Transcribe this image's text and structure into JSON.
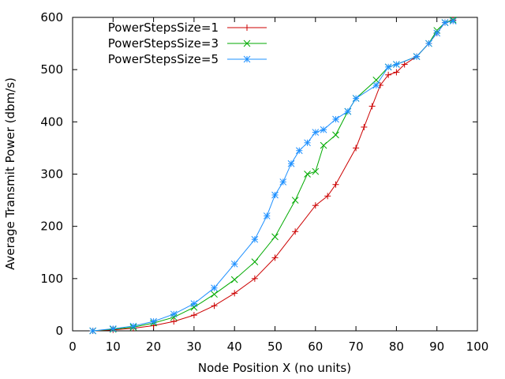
{
  "chart_data": {
    "type": "line",
    "title": "",
    "xlabel": "Node Position X (no units)",
    "ylabel": "Average Transmit Power (dbm/s)",
    "xlim": [
      0,
      100
    ],
    "ylim": [
      0,
      600
    ],
    "xticks": [
      0,
      10,
      20,
      30,
      40,
      50,
      60,
      70,
      80,
      90,
      100
    ],
    "yticks": [
      0,
      100,
      200,
      300,
      400,
      500,
      600
    ],
    "grid": false,
    "legend_position": "top-left",
    "series": [
      {
        "name": "PowerStepsSize=1",
        "color": "#cc0000",
        "marker": "plus",
        "points": [
          [
            5,
            0
          ],
          [
            10,
            2
          ],
          [
            15,
            5
          ],
          [
            20,
            10
          ],
          [
            25,
            18
          ],
          [
            30,
            30
          ],
          [
            35,
            48
          ],
          [
            40,
            72
          ],
          [
            45,
            100
          ],
          [
            50,
            140
          ],
          [
            55,
            190
          ],
          [
            60,
            240
          ],
          [
            63,
            258
          ],
          [
            65,
            280
          ],
          [
            70,
            350
          ],
          [
            72,
            390
          ],
          [
            74,
            430
          ],
          [
            76,
            470
          ],
          [
            78,
            490
          ],
          [
            80,
            495
          ],
          [
            82,
            510
          ],
          [
            85,
            525
          ],
          [
            88,
            550
          ],
          [
            90,
            570
          ],
          [
            92,
            590
          ],
          [
            94,
            595
          ]
        ]
      },
      {
        "name": "PowerStepsSize=3",
        "color": "#00aa00",
        "marker": "cross",
        "points": [
          [
            5,
            0
          ],
          [
            10,
            3
          ],
          [
            15,
            7
          ],
          [
            20,
            15
          ],
          [
            25,
            26
          ],
          [
            30,
            45
          ],
          [
            35,
            70
          ],
          [
            40,
            98
          ],
          [
            45,
            132
          ],
          [
            50,
            180
          ],
          [
            55,
            250
          ],
          [
            58,
            300
          ],
          [
            60,
            305
          ],
          [
            62,
            355
          ],
          [
            65,
            375
          ],
          [
            68,
            420
          ],
          [
            70,
            445
          ],
          [
            75,
            480
          ],
          [
            78,
            505
          ],
          [
            80,
            510
          ],
          [
            85,
            525
          ],
          [
            88,
            550
          ],
          [
            90,
            575
          ],
          [
            92,
            590
          ],
          [
            94,
            595
          ]
        ]
      },
      {
        "name": "PowerStepsSize=5",
        "color": "#1e90ff",
        "marker": "star",
        "points": [
          [
            5,
            0
          ],
          [
            10,
            4
          ],
          [
            15,
            9
          ],
          [
            20,
            18
          ],
          [
            25,
            32
          ],
          [
            30,
            52
          ],
          [
            35,
            82
          ],
          [
            40,
            128
          ],
          [
            45,
            175
          ],
          [
            48,
            220
          ],
          [
            50,
            260
          ],
          [
            52,
            285
          ],
          [
            54,
            320
          ],
          [
            56,
            345
          ],
          [
            58,
            360
          ],
          [
            60,
            380
          ],
          [
            62,
            385
          ],
          [
            65,
            405
          ],
          [
            68,
            420
          ],
          [
            70,
            445
          ],
          [
            75,
            470
          ],
          [
            78,
            505
          ],
          [
            80,
            510
          ],
          [
            85,
            525
          ],
          [
            88,
            550
          ],
          [
            90,
            570
          ],
          [
            92,
            590
          ],
          [
            94,
            593
          ]
        ]
      }
    ]
  }
}
